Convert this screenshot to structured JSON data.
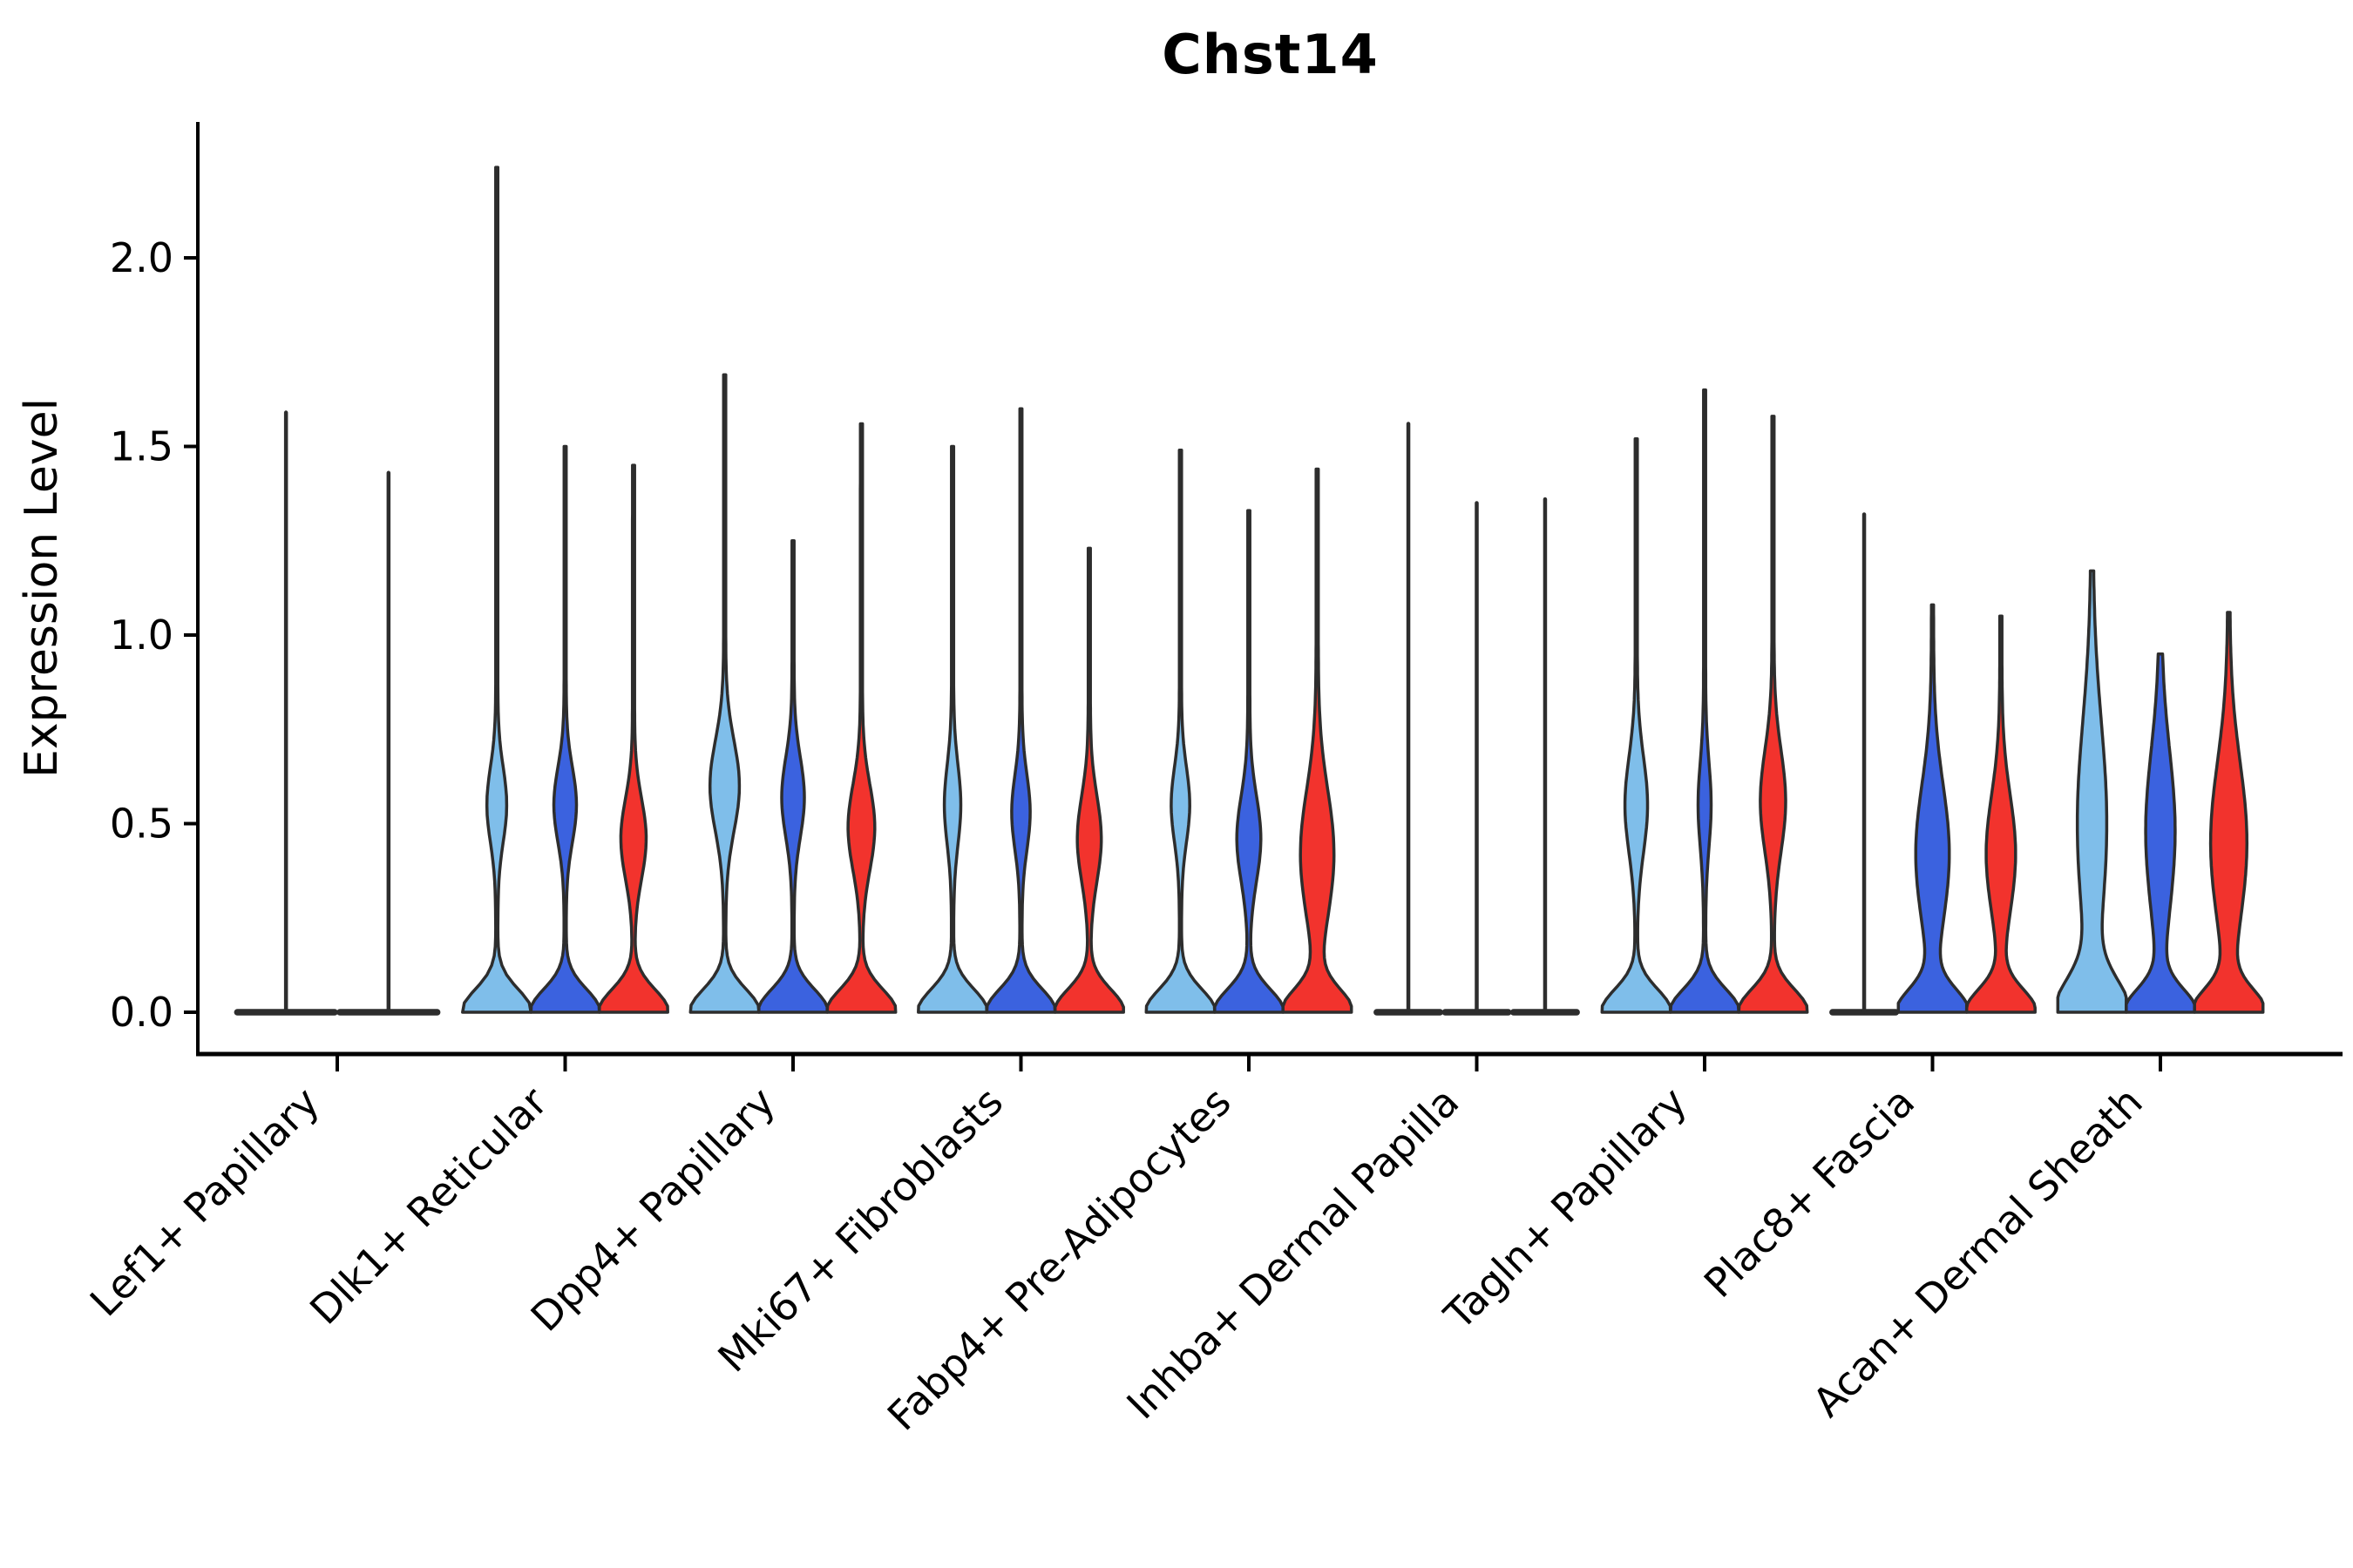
{
  "chart_data": {
    "type": "violin",
    "title": "Chst14",
    "ylabel": "Expression Level",
    "xlabel": "",
    "ylim": [
      0,
      2.35
    ],
    "yticks": [
      0.0,
      0.5,
      1.0,
      1.5,
      2.0
    ],
    "grid": false,
    "legend": null,
    "outline_color": "#2d2d2d",
    "axis_color": "#000000",
    "palette": {
      "light_blue": "#7FBEEA",
      "dark_blue": "#3B62DF",
      "red": "#F2332D"
    },
    "categories": [
      "Lef1+ Papillary",
      "Dlk1+ Reticular",
      "Dpp4+ Papillary",
      "Mki67+ Fibroblasts",
      "Fabp4+ Pre-Adipocytes",
      "Inhba+ Dermal Papilla",
      "Tagln+ Papillary",
      "Plac8+ Fascia",
      "Acan+ Dermal Sheath"
    ],
    "groups": [
      {
        "category": "Lef1+ Papillary",
        "violins": [
          {
            "series": "light_blue",
            "shape": "line",
            "max_expression": 1.59
          },
          {
            "series": "red",
            "shape": "line",
            "max_expression": 1.43
          }
        ]
      },
      {
        "category": "Dlk1+ Reticular",
        "violins": [
          {
            "series": "light_blue",
            "shape": "violin",
            "max_expression": 2.24,
            "bulge": {
              "center": 0.55,
              "sigma": 0.14,
              "width": 0.26
            }
          },
          {
            "series": "dark_blue",
            "shape": "violin",
            "max_expression": 1.5,
            "bulge": {
              "center": 0.55,
              "sigma": 0.14,
              "width": 0.3
            }
          },
          {
            "series": "red",
            "shape": "violin",
            "max_expression": 1.45,
            "bulge": {
              "center": 0.46,
              "sigma": 0.15,
              "width": 0.34
            }
          }
        ]
      },
      {
        "category": "Dpp4+ Papillary",
        "violins": [
          {
            "series": "light_blue",
            "shape": "violin",
            "max_expression": 1.69,
            "bulge": {
              "center": 0.6,
              "sigma": 0.17,
              "width": 0.4
            }
          },
          {
            "series": "dark_blue",
            "shape": "violin",
            "max_expression": 1.25,
            "bulge": {
              "center": 0.57,
              "sigma": 0.15,
              "width": 0.3
            }
          },
          {
            "series": "red",
            "shape": "violin",
            "max_expression": 1.56,
            "bulge": {
              "center": 0.49,
              "sigma": 0.16,
              "width": 0.36
            }
          }
        ]
      },
      {
        "category": "Mki67+ Fibroblasts",
        "violins": [
          {
            "series": "light_blue",
            "shape": "violin",
            "max_expression": 1.5,
            "bulge": {
              "center": 0.55,
              "sigma": 0.15,
              "width": 0.21
            }
          },
          {
            "series": "dark_blue",
            "shape": "violin",
            "max_expression": 1.6,
            "bulge": {
              "center": 0.53,
              "sigma": 0.14,
              "width": 0.24
            }
          },
          {
            "series": "red",
            "shape": "violin",
            "max_expression": 1.23,
            "bulge": {
              "center": 0.46,
              "sigma": 0.16,
              "width": 0.32
            }
          }
        ]
      },
      {
        "category": "Fabp4+ Pre-Adipocytes",
        "violins": [
          {
            "series": "light_blue",
            "shape": "violin",
            "max_expression": 1.49,
            "bulge": {
              "center": 0.55,
              "sigma": 0.14,
              "width": 0.24
            }
          },
          {
            "series": "dark_blue",
            "shape": "violin",
            "max_expression": 1.33,
            "bulge": {
              "center": 0.46,
              "sigma": 0.16,
              "width": 0.32
            }
          },
          {
            "series": "red",
            "shape": "violin",
            "max_expression": 1.44,
            "bulge": {
              "center": 0.42,
              "sigma": 0.24,
              "width": 0.46
            }
          }
        ]
      },
      {
        "category": "Inhba+ Dermal Papilla",
        "violins": [
          {
            "series": "light_blue",
            "shape": "line",
            "max_expression": 1.56
          },
          {
            "series": "dark_blue",
            "shape": "line",
            "max_expression": 1.35
          },
          {
            "series": "red",
            "shape": "line",
            "max_expression": 1.36
          }
        ]
      },
      {
        "category": "Tagln+ Papillary",
        "violins": [
          {
            "series": "light_blue",
            "shape": "violin",
            "max_expression": 1.52,
            "bulge": {
              "center": 0.55,
              "sigma": 0.18,
              "width": 0.3
            }
          },
          {
            "series": "dark_blue",
            "shape": "violin",
            "max_expression": 1.65,
            "bulge": {
              "center": 0.55,
              "sigma": 0.16,
              "width": 0.16
            }
          },
          {
            "series": "red",
            "shape": "violin",
            "max_expression": 1.58,
            "bulge": {
              "center": 0.56,
              "sigma": 0.19,
              "width": 0.34
            }
          }
        ]
      },
      {
        "category": "Plac8+ Fascia",
        "violins": [
          {
            "series": "light_blue",
            "shape": "line",
            "max_expression": 1.32
          },
          {
            "series": "dark_blue",
            "shape": "violin",
            "max_expression": 1.08,
            "bulge": {
              "center": 0.42,
              "sigma": 0.26,
              "width": 0.46
            }
          },
          {
            "series": "red",
            "shape": "violin",
            "max_expression": 1.05,
            "bulge": {
              "center": 0.42,
              "sigma": 0.22,
              "width": 0.4
            }
          }
        ]
      },
      {
        "category": "Acan+ Dermal Sheath",
        "violins": [
          {
            "series": "light_blue",
            "shape": "violin",
            "max_expression": 1.17,
            "base_sigma": 0.12,
            "bulge": {
              "center": 0.5,
              "sigma": 0.38,
              "width": 0.4
            }
          },
          {
            "series": "dark_blue",
            "shape": "violin",
            "max_expression": 0.95,
            "bulge": {
              "center": 0.48,
              "sigma": 0.3,
              "width": 0.4
            }
          },
          {
            "series": "red",
            "shape": "violin",
            "max_expression": 1.06,
            "bulge": {
              "center": 0.45,
              "sigma": 0.3,
              "width": 0.5
            }
          }
        ]
      }
    ]
  }
}
